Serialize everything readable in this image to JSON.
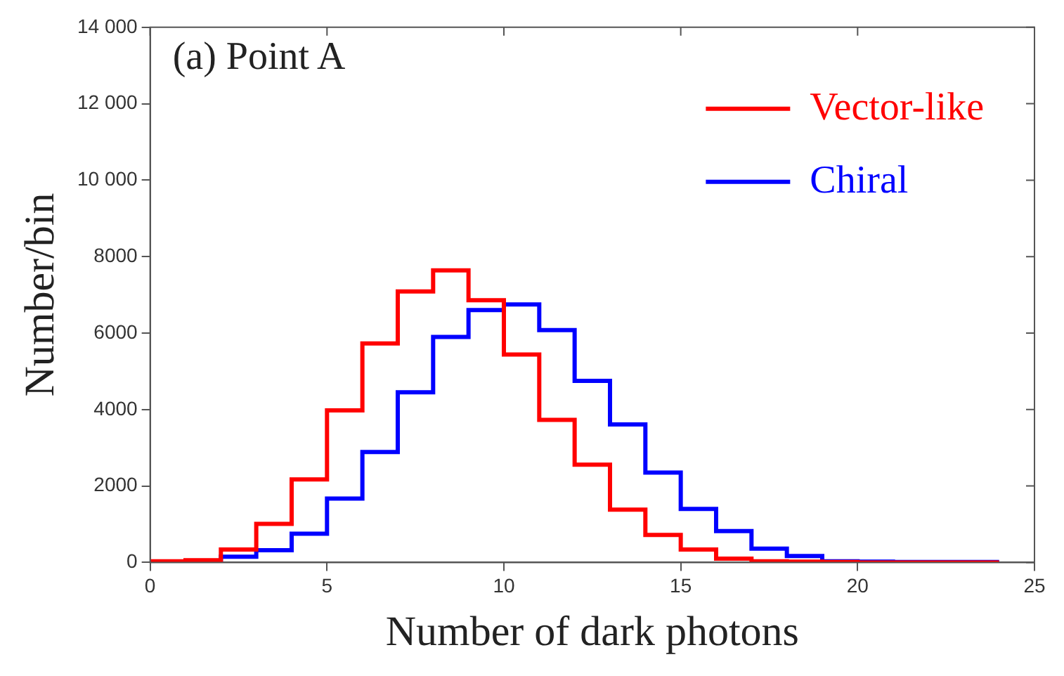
{
  "chart_data": {
    "type": "histogram",
    "title": "(a) Point A",
    "xlabel": "Number of dark photons",
    "ylabel": "Number/bin",
    "bins": [
      0,
      1,
      2,
      3,
      4,
      5,
      6,
      7,
      8,
      9,
      10,
      11,
      12,
      13,
      14,
      15,
      16,
      17,
      18,
      19,
      20,
      21,
      22,
      23,
      24
    ],
    "series": [
      {
        "name": "Vector-like",
        "color": "#ff0000",
        "values": [
          30,
          60,
          340,
          1010,
          2170,
          3980,
          5730,
          7090,
          7640,
          6860,
          5440,
          3730,
          2560,
          1380,
          720,
          340,
          100,
          30,
          20,
          10,
          0,
          0,
          0,
          0
        ]
      },
      {
        "name": "Chiral",
        "color": "#0000ff",
        "values": [
          20,
          30,
          150,
          320,
          750,
          1670,
          2890,
          4450,
          5900,
          6600,
          6750,
          6080,
          4750,
          3610,
          2350,
          1400,
          820,
          360,
          170,
          30,
          20,
          10,
          10,
          10
        ]
      }
    ],
    "xlim": [
      0,
      25
    ],
    "xticks": [
      0,
      5,
      10,
      15,
      20,
      25
    ],
    "ylim": [
      0,
      14000
    ],
    "yticks": [
      0,
      2000,
      4000,
      6000,
      8000,
      {
        "value": 10000,
        "label": "10 000"
      },
      {
        "value": 12000,
        "label": "12 000"
      },
      {
        "value": 14000,
        "label": "14 000"
      }
    ],
    "grid": false,
    "legend": "top right"
  }
}
